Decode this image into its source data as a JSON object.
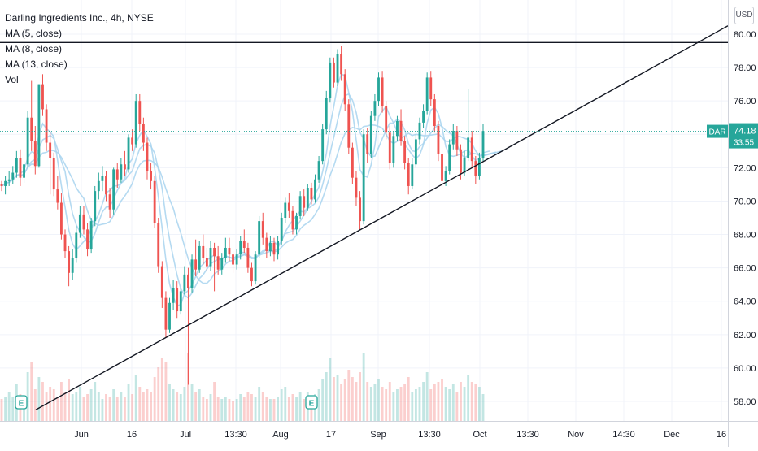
{
  "chart_data": {
    "type": "candlestick",
    "title": "Darling Ingredients Inc., 4h, NYSE",
    "symbol": "DAR",
    "currency": "USD",
    "indicators": [
      "MA (5, close)",
      "MA (8, close)",
      "MA (13, close)",
      "Vol"
    ],
    "last_price": "74.18",
    "countdown": "33:55",
    "ylim": [
      57,
      81
    ],
    "y_ticks": [
      "80.00",
      "78.00",
      "76.00",
      "74.00",
      "72.00",
      "70.00",
      "68.00",
      "66.00",
      "64.00",
      "62.00",
      "60.00",
      "58.00"
    ],
    "x_ticks": [
      "Jun",
      "16",
      "Jul",
      "13:30",
      "Aug",
      "17",
      "Sep",
      "13:30",
      "Oct",
      "13:30",
      "Nov",
      "14:30",
      "Dec",
      "16"
    ],
    "earnings_markers": [
      "E",
      "E"
    ],
    "colors": {
      "up": "#26a69a",
      "down": "#ef5350",
      "ma": "#a8d4ee",
      "trendline": "#131722",
      "last_price": "#26a69a"
    },
    "trendlines": [
      {
        "name": "resistance",
        "value": 79.5
      },
      {
        "name": "support",
        "from": 57.5,
        "to": 80.5
      }
    ],
    "series": [
      {
        "name": "DAR",
        "ohlc": [
          [
            71.0,
            71.2,
            70.6,
            70.9
          ],
          [
            70.9,
            71.5,
            70.4,
            71.2
          ],
          [
            71.2,
            71.8,
            70.9,
            71.3
          ],
          [
            71.3,
            72.1,
            71.0,
            71.7
          ],
          [
            71.7,
            73.0,
            71.4,
            72.6
          ],
          [
            72.6,
            73.1,
            70.9,
            71.4
          ],
          [
            71.4,
            72.4,
            71.1,
            72.2
          ],
          [
            72.2,
            75.4,
            72.0,
            75.0
          ],
          [
            75.0,
            77.2,
            73.0,
            73.6
          ],
          [
            73.6,
            74.5,
            71.6,
            72.1
          ],
          [
            72.1,
            77.0,
            72.0,
            77.0
          ],
          [
            77.0,
            77.6,
            75.1,
            75.5
          ],
          [
            75.5,
            75.8,
            73.0,
            73.5
          ],
          [
            73.5,
            74.1,
            70.4,
            72.6
          ],
          [
            72.6,
            72.9,
            70.3,
            70.7
          ],
          [
            70.7,
            71.5,
            69.5,
            69.9
          ],
          [
            69.9,
            70.5,
            67.7,
            68.0
          ],
          [
            68.0,
            68.3,
            66.6,
            67.0
          ],
          [
            67.0,
            67.3,
            64.9,
            65.7
          ],
          [
            65.7,
            67.1,
            65.3,
            66.6
          ],
          [
            66.6,
            68.5,
            66.3,
            68.1
          ],
          [
            68.1,
            69.7,
            67.8,
            69.2
          ],
          [
            69.2,
            69.7,
            68.0,
            68.3
          ],
          [
            68.3,
            68.7,
            66.7,
            67.1
          ],
          [
            67.1,
            69.0,
            66.9,
            68.8
          ],
          [
            68.8,
            70.9,
            68.5,
            70.6
          ],
          [
            70.6,
            71.7,
            70.1,
            71.2
          ],
          [
            71.2,
            72.1,
            70.6,
            71.5
          ],
          [
            71.5,
            71.8,
            70.0,
            70.4
          ],
          [
            70.4,
            70.8,
            69.0,
            69.5
          ],
          [
            69.5,
            72.0,
            69.2,
            71.9
          ],
          [
            71.9,
            72.3,
            70.8,
            71.3
          ],
          [
            71.3,
            72.6,
            71.1,
            72.2
          ],
          [
            72.2,
            73.0,
            71.5,
            71.9
          ],
          [
            71.9,
            74.0,
            71.7,
            73.8
          ],
          [
            73.8,
            74.3,
            73.0,
            73.4
          ],
          [
            73.4,
            76.4,
            73.2,
            76.0
          ],
          [
            76.0,
            76.4,
            74.2,
            74.6
          ],
          [
            74.6,
            75.0,
            73.0,
            73.5
          ],
          [
            73.5,
            73.8,
            71.3,
            71.8
          ],
          [
            71.8,
            72.3,
            70.7,
            71.2
          ],
          [
            71.2,
            71.5,
            68.4,
            68.7
          ],
          [
            68.7,
            69.0,
            65.7,
            66.1
          ],
          [
            66.1,
            66.4,
            63.6,
            64.2
          ],
          [
            64.2,
            64.6,
            61.8,
            62.3
          ],
          [
            62.3,
            64.2,
            62.1,
            63.9
          ],
          [
            63.9,
            65.3,
            63.5,
            64.8
          ],
          [
            64.8,
            65.2,
            63.0,
            63.4
          ],
          [
            63.4,
            64.8,
            63.2,
            64.6
          ],
          [
            64.6,
            66.1,
            64.4,
            65.6
          ],
          [
            65.6,
            66.0,
            59.0,
            64.8
          ],
          [
            64.8,
            66.8,
            64.5,
            66.5
          ],
          [
            66.5,
            67.7,
            65.5,
            65.9
          ],
          [
            65.9,
            67.6,
            65.7,
            67.3
          ],
          [
            67.3,
            68.0,
            66.2,
            66.6
          ],
          [
            66.6,
            67.2,
            65.8,
            66.1
          ],
          [
            66.1,
            67.6,
            65.8,
            67.2
          ],
          [
            67.2,
            67.5,
            64.6,
            66.7
          ],
          [
            66.7,
            67.3,
            65.6,
            65.9
          ],
          [
            65.9,
            66.9,
            65.6,
            66.6
          ],
          [
            66.6,
            67.8,
            66.3,
            67.2
          ],
          [
            67.2,
            67.8,
            66.4,
            66.8
          ],
          [
            66.8,
            67.0,
            65.7,
            66.2
          ],
          [
            66.2,
            67.1,
            65.9,
            66.8
          ],
          [
            66.8,
            67.9,
            66.5,
            67.6
          ],
          [
            67.6,
            68.3,
            66.9,
            67.2
          ],
          [
            67.2,
            67.5,
            65.7,
            66.0
          ],
          [
            66.0,
            66.3,
            64.9,
            65.2
          ],
          [
            65.2,
            67.0,
            65.0,
            66.8
          ],
          [
            66.8,
            69.1,
            66.6,
            68.8
          ],
          [
            68.8,
            69.3,
            67.4,
            67.8
          ],
          [
            67.8,
            68.1,
            66.6,
            67.0
          ],
          [
            67.0,
            67.9,
            66.7,
            67.5
          ],
          [
            67.5,
            67.8,
            66.4,
            66.8
          ],
          [
            66.8,
            67.9,
            66.5,
            67.6
          ],
          [
            67.6,
            69.3,
            67.4,
            69.0
          ],
          [
            69.0,
            70.2,
            68.7,
            69.9
          ],
          [
            69.9,
            70.5,
            69.0,
            69.4
          ],
          [
            69.4,
            69.7,
            68.0,
            68.3
          ],
          [
            68.3,
            69.3,
            68.0,
            69.1
          ],
          [
            69.1,
            70.6,
            68.9,
            70.3
          ],
          [
            70.3,
            70.7,
            69.1,
            69.6
          ],
          [
            69.6,
            71.0,
            69.4,
            70.8
          ],
          [
            70.8,
            71.1,
            69.8,
            70.1
          ],
          [
            70.1,
            71.6,
            69.9,
            71.3
          ],
          [
            71.3,
            72.7,
            71.1,
            72.4
          ],
          [
            72.4,
            74.6,
            72.2,
            74.3
          ],
          [
            74.3,
            76.6,
            74.0,
            76.2
          ],
          [
            76.2,
            78.6,
            75.9,
            78.3
          ],
          [
            78.3,
            78.6,
            76.8,
            77.1
          ],
          [
            77.1,
            79.1,
            76.9,
            78.8
          ],
          [
            78.8,
            79.3,
            77.2,
            77.6
          ],
          [
            77.6,
            77.9,
            75.4,
            75.8
          ],
          [
            75.8,
            76.1,
            72.8,
            73.2
          ],
          [
            73.2,
            73.5,
            71.0,
            71.4
          ],
          [
            71.4,
            71.8,
            69.7,
            70.2
          ],
          [
            70.2,
            70.6,
            68.3,
            68.8
          ],
          [
            68.8,
            74.3,
            68.6,
            74.0
          ],
          [
            74.0,
            74.4,
            72.3,
            72.8
          ],
          [
            72.8,
            75.4,
            72.6,
            75.1
          ],
          [
            75.1,
            76.4,
            74.8,
            76.0
          ],
          [
            76.0,
            77.7,
            75.7,
            77.4
          ],
          [
            77.4,
            77.8,
            75.3,
            75.7
          ],
          [
            75.7,
            76.0,
            73.7,
            74.1
          ],
          [
            74.1,
            74.5,
            71.9,
            72.3
          ],
          [
            72.3,
            74.2,
            72.0,
            73.9
          ],
          [
            73.9,
            75.1,
            73.6,
            74.8
          ],
          [
            74.8,
            75.5,
            73.3,
            73.6
          ],
          [
            73.6,
            73.9,
            71.9,
            72.3
          ],
          [
            72.3,
            72.6,
            70.4,
            70.9
          ],
          [
            70.9,
            72.6,
            70.7,
            72.2
          ],
          [
            72.2,
            74.0,
            72.0,
            73.7
          ],
          [
            73.7,
            75.0,
            73.4,
            74.7
          ],
          [
            74.7,
            75.8,
            74.4,
            75.4
          ],
          [
            75.4,
            77.7,
            75.2,
            77.4
          ],
          [
            77.4,
            77.8,
            75.7,
            76.1
          ],
          [
            76.1,
            76.4,
            74.1,
            74.5
          ],
          [
            74.5,
            74.8,
            72.4,
            72.8
          ],
          [
            72.8,
            73.1,
            70.8,
            71.2
          ],
          [
            71.2,
            72.1,
            70.9,
            71.8
          ],
          [
            71.8,
            73.7,
            71.6,
            73.4
          ],
          [
            73.4,
            74.6,
            73.1,
            74.2
          ],
          [
            74.2,
            74.5,
            72.7,
            73.1
          ],
          [
            73.1,
            73.4,
            71.3,
            71.7
          ],
          [
            71.7,
            73.0,
            71.5,
            72.6
          ],
          [
            72.6,
            76.7,
            72.4,
            73.8
          ],
          [
            73.8,
            74.2,
            72.0,
            72.4
          ],
          [
            72.4,
            72.7,
            71.0,
            71.5
          ],
          [
            71.5,
            72.9,
            71.3,
            72.6
          ],
          [
            72.6,
            74.6,
            72.4,
            74.2
          ]
        ]
      },
      {
        "name": "MA (5, close)",
        "period": 5
      },
      {
        "name": "MA (8, close)",
        "period": 8
      },
      {
        "name": "MA (13, close)",
        "period": 13
      }
    ],
    "volume": [
      0.9,
      1.0,
      1.2,
      1.0,
      1.5,
      1.1,
      1.0,
      2.0,
      2.4,
      1.3,
      1.8,
      1.6,
      1.2,
      1.4,
      1.3,
      1.0,
      1.6,
      1.2,
      1.7,
      1.1,
      1.2,
      1.4,
      1.0,
      1.1,
      1.3,
      1.6,
      1.2,
      0.9,
      1.1,
      1.0,
      1.3,
      1.0,
      1.2,
      1.0,
      1.5,
      1.1,
      1.9,
      1.4,
      1.2,
      1.3,
      1.2,
      1.8,
      2.2,
      2.6,
      2.4,
      1.5,
      1.3,
      1.2,
      1.1,
      1.4,
      2.8,
      1.5,
      1.2,
      1.3,
      1.0,
      0.9,
      1.1,
      1.6,
      1.0,
      0.9,
      1.0,
      0.9,
      0.8,
      0.9,
      1.1,
      1.0,
      1.2,
      1.1,
      1.0,
      1.4,
      1.2,
      1.0,
      0.9,
      0.9,
      1.0,
      1.3,
      1.4,
      1.0,
      1.1,
      1.0,
      1.2,
      0.9,
      1.2,
      1.0,
      1.1,
      1.3,
      1.7,
      2.0,
      2.6,
      1.8,
      1.9,
      1.5,
      1.7,
      2.1,
      1.8,
      1.6,
      2.0,
      2.8,
      1.6,
      1.4,
      1.5,
      1.7,
      1.4,
      1.3,
      1.6,
      1.2,
      1.3,
      1.4,
      1.5,
      1.8,
      1.2,
      1.3,
      1.4,
      1.6,
      2.0,
      1.3,
      1.5,
      1.6,
      1.7,
      1.4,
      1.3,
      1.5,
      1.2,
      1.6,
      1.4,
      1.9,
      1.6,
      1.5,
      1.4,
      1.1
    ]
  }
}
